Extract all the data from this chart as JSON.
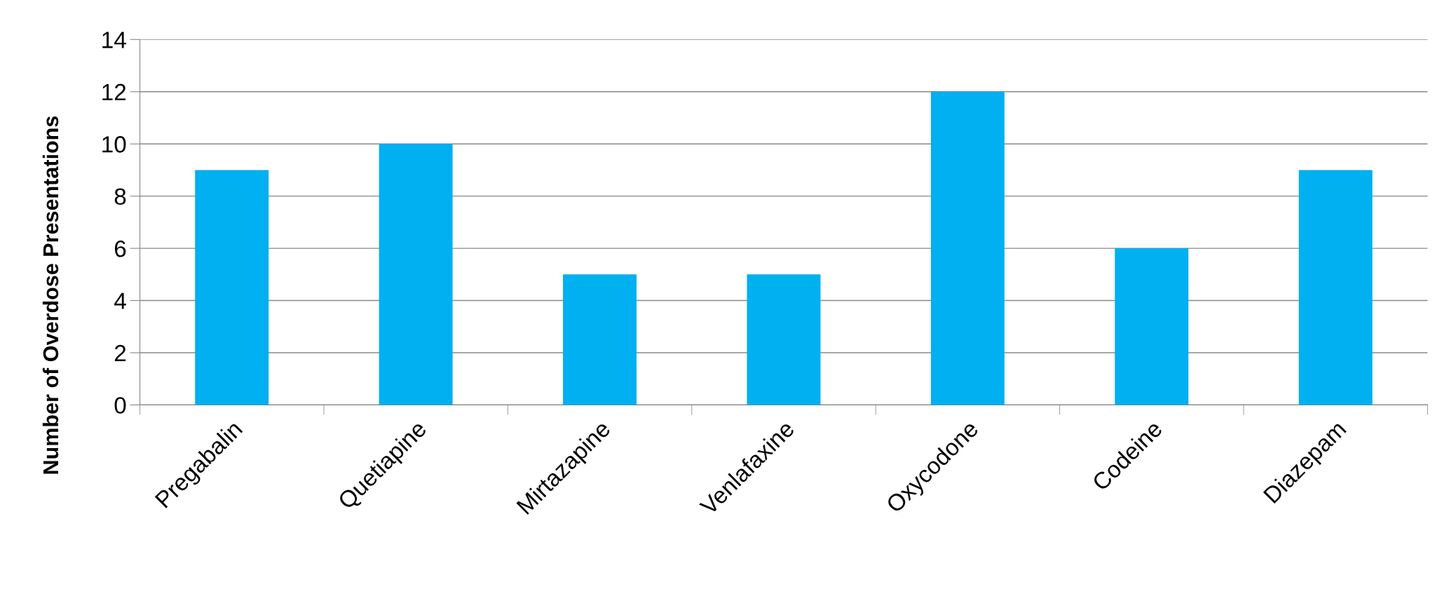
{
  "chart_data": {
    "type": "bar",
    "ylabel": "Number of Overdose Presentations",
    "categories": [
      "Pregabalin",
      "Quetiapine",
      "Mirtazapine",
      "Venlafaxine",
      "Oxycodone",
      "Codeine",
      "Diazepam"
    ],
    "values": [
      9,
      10,
      5,
      5,
      12,
      6,
      9
    ],
    "color": "#00b0f0",
    "ylim": [
      0,
      14
    ],
    "yticks": [
      0,
      2,
      4,
      6,
      8,
      10,
      12,
      14
    ],
    "grid": "y"
  }
}
